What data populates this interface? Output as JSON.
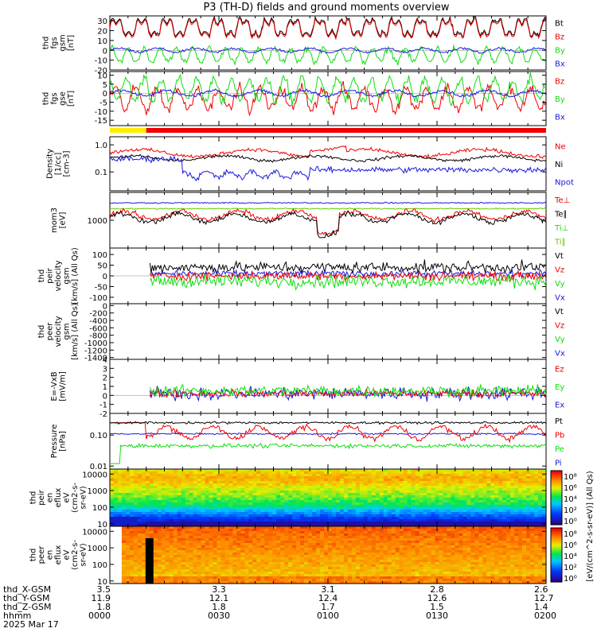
{
  "title": "P3 (TH-D) fields and ground moments overview",
  "colors": {
    "black": "#000000",
    "red": "#ee0000",
    "green": "#11dd11",
    "blue": "#1a1add",
    "lightgreen": "#66cc00",
    "yellow": "#ffee00",
    "barred": "#ee0000"
  },
  "chart_data": {
    "type": "line",
    "x_range_minutes": [
      0,
      120
    ],
    "panels": [
      {
        "id": "fgs-gsm",
        "ylabel": [
          "thd",
          "fgs",
          "gsm",
          "[nT]"
        ],
        "scale": "linear",
        "ylim": [
          -20,
          35
        ],
        "ticks": [
          "30",
          "20",
          "10",
          "0",
          "-10",
          "-20"
        ],
        "tickvals": [
          30,
          20,
          10,
          0,
          -10,
          -20
        ],
        "legend": [
          {
            "name": "Bt",
            "color": "black"
          },
          {
            "name": "Bz",
            "color": "red"
          },
          {
            "name": "By",
            "color": "green"
          },
          {
            "name": "Bx",
            "color": "blue"
          }
        ]
      },
      {
        "id": "fgs-gse",
        "ylabel": [
          "thd",
          "fgs",
          "gse",
          "[nT]"
        ],
        "scale": "linear",
        "ylim": [
          -18,
          12
        ],
        "ticks": [
          "10",
          "5",
          "0",
          "-5",
          "-10",
          "-15"
        ],
        "tickvals": [
          10,
          5,
          0,
          -5,
          -10,
          -15
        ],
        "legend": [
          {
            "name": "Bz",
            "color": "red"
          },
          {
            "name": "By",
            "color": "green"
          },
          {
            "name": "Bx",
            "color": "blue"
          }
        ]
      },
      {
        "id": "density",
        "ylabel": [
          "Density",
          "[1/cc]",
          "[cm-3]"
        ],
        "scale": "log",
        "ylim": [
          0.02,
          2
        ],
        "ticks": [
          "1.0",
          "0.1"
        ],
        "tickvals": [
          1,
          0.1
        ],
        "legend": [
          {
            "name": "Ne",
            "color": "red"
          },
          {
            "name": "Ni",
            "color": "black"
          },
          {
            "name": "Npot",
            "color": "blue"
          }
        ]
      },
      {
        "id": "temperature",
        "ylabel": [
          "mom3",
          "[eV]"
        ],
        "scale": "log",
        "ylim": [
          100,
          10000
        ],
        "ticks": [
          "1000"
        ],
        "tickvals": [
          1000
        ],
        "legend": [
          {
            "name": "Te⊥",
            "color": "red"
          },
          {
            "name": "Te∥",
            "color": "black"
          },
          {
            "name": "Ti⊥",
            "color": "green"
          },
          {
            "name": "Ti∥",
            "color": "lightgreen"
          }
        ]
      },
      {
        "id": "peir-velocity",
        "ylabel": [
          "thd",
          "peir",
          "velocity",
          "gsm",
          "[km/s] (All Qs)"
        ],
        "scale": "linear",
        "ylim": [
          -130,
          130
        ],
        "ticks": [
          "100",
          "50",
          "0",
          "-50",
          "-100"
        ],
        "tickvals": [
          100,
          50,
          0,
          -50,
          -100
        ],
        "legend": [
          {
            "name": "Vt",
            "color": "black"
          },
          {
            "name": "Vz",
            "color": "red"
          },
          {
            "name": "Vy",
            "color": "green"
          },
          {
            "name": "Vx",
            "color": "blue"
          }
        ]
      },
      {
        "id": "peer-velocity",
        "ylabel": [
          "thd",
          "peer",
          "velocity",
          "gsm",
          "[km/s] (All Qs)"
        ],
        "scale": "linear",
        "ylim": [
          -1450,
          50
        ],
        "ticks": [
          "0",
          "-200",
          "-400",
          "-600",
          "-800",
          "-1000",
          "-1200",
          "-1400"
        ],
        "tickvals": [
          0,
          -200,
          -400,
          -600,
          -800,
          -1000,
          -1200,
          -1400
        ],
        "legend": [
          {
            "name": "Vt",
            "color": "black"
          },
          {
            "name": "Vz",
            "color": "red"
          },
          {
            "name": "Vy",
            "color": "green"
          },
          {
            "name": "Vx",
            "color": "blue"
          }
        ]
      },
      {
        "id": "efield",
        "ylabel": [
          "E=-VxB",
          "[mV/m]"
        ],
        "scale": "linear",
        "ylim": [
          -2,
          4
        ],
        "ticks": [
          "4",
          "3",
          "2",
          "1",
          "0",
          "-1",
          "-2"
        ],
        "tickvals": [
          4,
          3,
          2,
          1,
          0,
          -1,
          -2
        ],
        "legend": [
          {
            "name": "Ez",
            "color": "red"
          },
          {
            "name": "Ey",
            "color": "green"
          },
          {
            "name": "Ex",
            "color": "blue"
          }
        ]
      },
      {
        "id": "pressure",
        "ylabel": [
          "Pressure",
          "[nPa]"
        ],
        "scale": "log",
        "ylim": [
          0.008,
          0.5
        ],
        "ticks": [
          "0.10",
          "0.01"
        ],
        "tickvals": [
          0.1,
          0.01
        ],
        "legend": [
          {
            "name": "Pt",
            "color": "black"
          },
          {
            "name": "Pb",
            "color": "red"
          },
          {
            "name": "Pe",
            "color": "green"
          },
          {
            "name": "Pi",
            "color": "blue"
          }
        ]
      }
    ],
    "spectrograms": [
      {
        "id": "peir-en-eflux",
        "ylabel": [
          "thd",
          "peir",
          "en",
          "eflux",
          "eV",
          "(cm2-s-",
          "sr-eV)"
        ],
        "ticks": [
          "10000",
          "1000",
          "100",
          "10"
        ],
        "tickvals": [
          10000,
          1000,
          100,
          10
        ],
        "ylim": [
          7,
          20000
        ]
      },
      {
        "id": "peer-en-eflux",
        "ylabel": [
          "thd",
          "peer",
          "en",
          "eflux",
          "eV",
          "(cm2-s-",
          "sr-eV)"
        ],
        "ticks": [
          "10000",
          "1000",
          "100",
          "10"
        ],
        "tickvals": [
          10000,
          1000,
          100,
          10
        ],
        "ylim": [
          7,
          20000
        ]
      }
    ],
    "colorbar": {
      "label": "[eV/(cm^2-s-sr-eV)] (All Qs)",
      "ticks_top": [
        "10⁸",
        "10⁶",
        "10⁴",
        "10²",
        "10⁰"
      ],
      "ticks_bottom": [
        "10⁸",
        "10⁶",
        "10⁴",
        "10²",
        "10⁰"
      ]
    },
    "mode_bar": {
      "segments": [
        {
          "from": 0,
          "to": 10,
          "color": "yellow"
        },
        {
          "from": 10,
          "to": 120,
          "color": "barred"
        }
      ]
    }
  },
  "footer": {
    "rows": [
      {
        "label": "thd_X-GSM",
        "values": [
          "3.5",
          "3.3",
          "3.1",
          "2.8",
          "2.6"
        ]
      },
      {
        "label": "thd_Y-GSM",
        "values": [
          "11.9",
          "12.1",
          "12.4",
          "12.6",
          "12.7"
        ]
      },
      {
        "label": "thd_Z-GSM",
        "values": [
          "1.8",
          "1.8",
          "1.7",
          "1.5",
          "1.4"
        ]
      },
      {
        "label": "hhmm",
        "values": [
          "0000",
          "0030",
          "0100",
          "0130",
          "0200"
        ]
      }
    ],
    "date": "2025 Mar 17"
  }
}
